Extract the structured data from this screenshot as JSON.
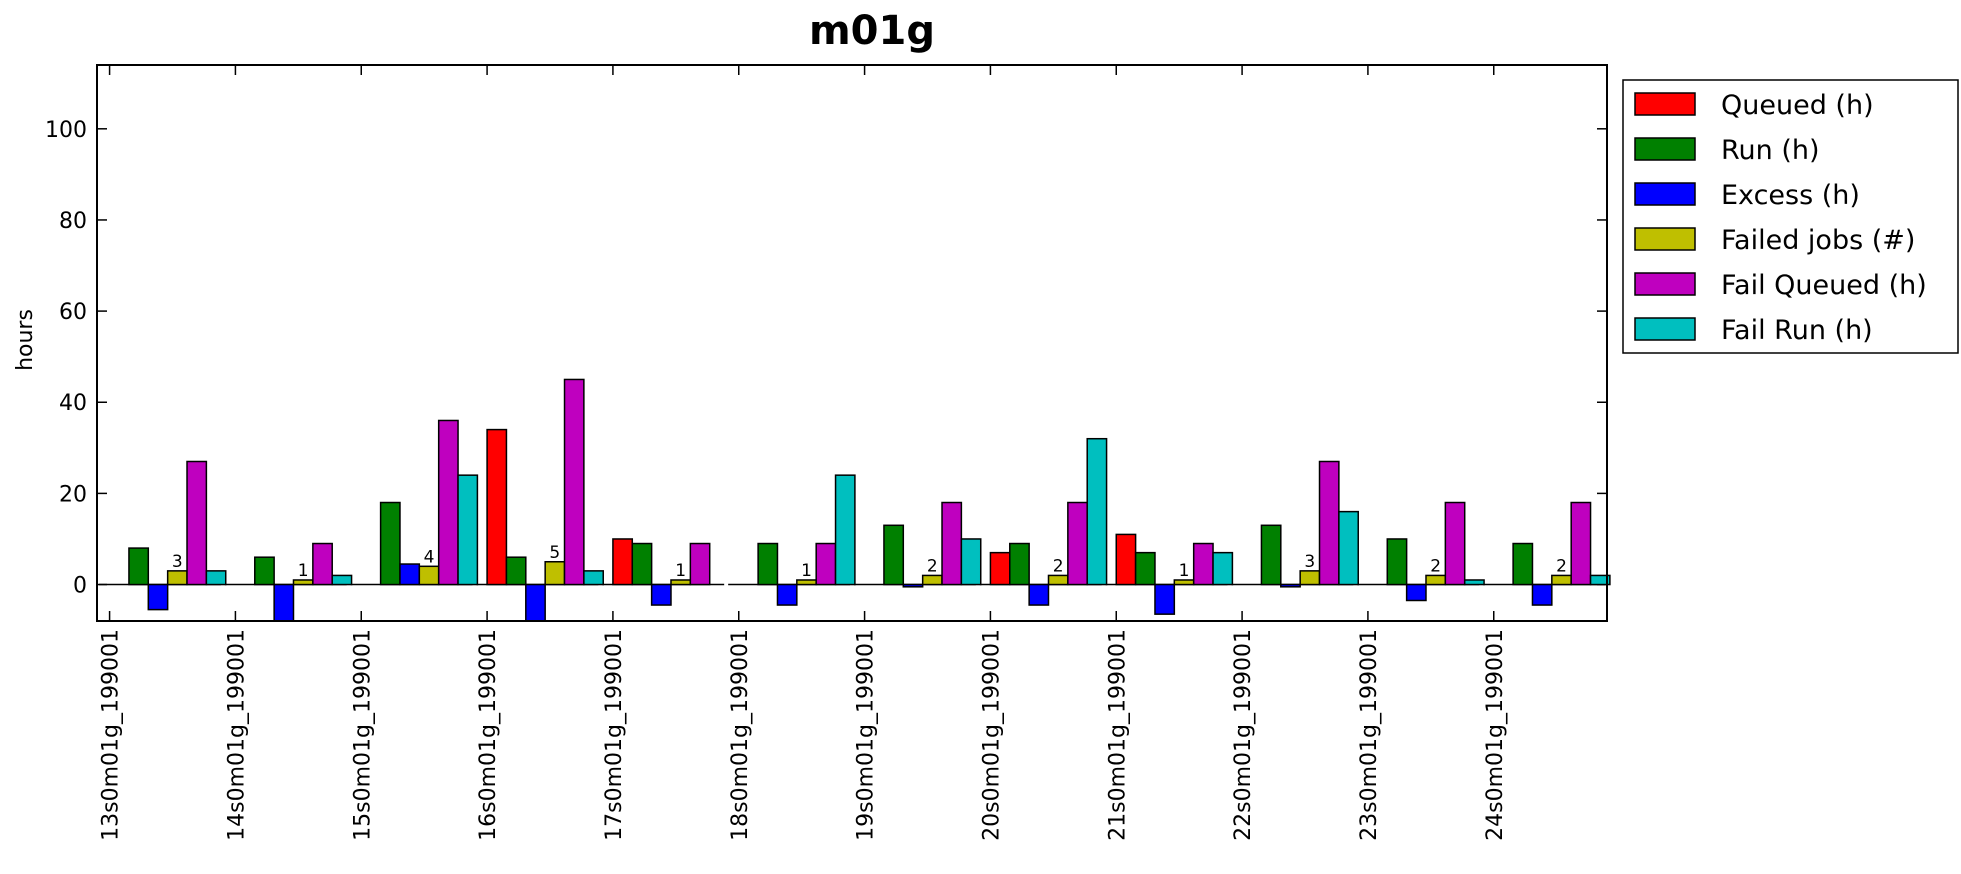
{
  "chart_data": {
    "type": "bar",
    "title": "m01g",
    "ylabel": "hours",
    "xlabel": "",
    "ylim": [
      -8,
      114
    ],
    "yticks": [
      0,
      20,
      40,
      60,
      80,
      100
    ],
    "legend_position": "right-outside",
    "categories": [
      "13s0m01g_199001",
      "14s0m01g_199001",
      "15s0m01g_199001",
      "16s0m01g_199001",
      "17s0m01g_199001",
      "18s0m01g_199001",
      "19s0m01g_199001",
      "20s0m01g_199001",
      "21s0m01g_199001",
      "22s0m01g_199001",
      "23s0m01g_199001",
      "24s0m01g_199001"
    ],
    "series": [
      {
        "name": "Queued (h)",
        "color": "#ff0000",
        "values": [
          0,
          0,
          0,
          34,
          10,
          0,
          0,
          7,
          11,
          0,
          0,
          0
        ]
      },
      {
        "name": "Run (h)",
        "color": "#008000",
        "values": [
          8,
          6,
          18,
          6,
          9,
          9,
          13,
          9,
          7,
          13,
          10,
          9
        ]
      },
      {
        "name": "Excess (h)",
        "color": "#0000ff",
        "values": [
          -5.5,
          -8,
          4.5,
          -8,
          -4.5,
          -4.5,
          -0.5,
          -4.5,
          -6.5,
          -0.5,
          -3.5,
          -4.5
        ]
      },
      {
        "name": "Failed jobs (#)",
        "color": "#bfbf00",
        "values": [
          3,
          1,
          4,
          5,
          1,
          1,
          2,
          2,
          1,
          3,
          2,
          2
        ]
      },
      {
        "name": "Fail Queued (h)",
        "color": "#bf00bf",
        "values": [
          27,
          9,
          36,
          45,
          9,
          9,
          18,
          18,
          9,
          27,
          18,
          18
        ]
      },
      {
        "name": "Fail Run (h)",
        "color": "#00bfbf",
        "values": [
          3,
          2,
          24,
          3,
          0,
          24,
          10,
          32,
          7,
          16,
          1,
          2
        ]
      }
    ],
    "count_labels": [
      "3",
      "1",
      "4",
      "5",
      "1",
      "1",
      "2",
      "2",
      "1",
      "3",
      "2",
      "2"
    ]
  }
}
